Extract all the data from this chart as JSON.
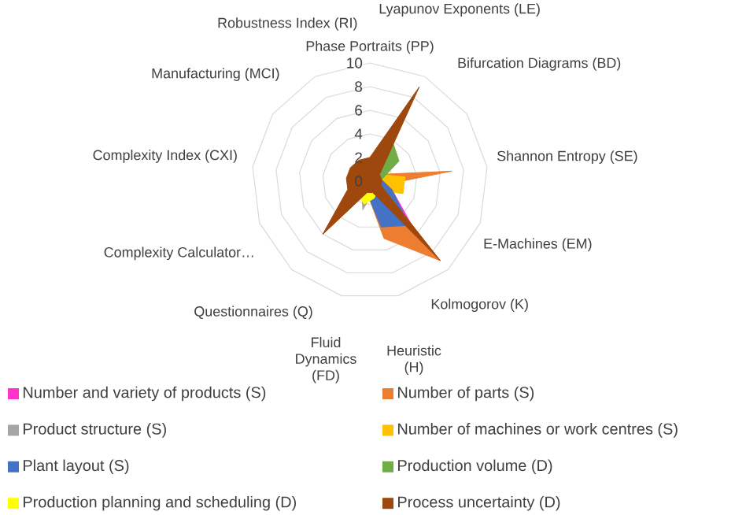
{
  "chart_data": {
    "type": "radar",
    "categories": [
      "Phase Portraits (PP)",
      "Lyapunov Exponents (LE)",
      "Bifurcation Diagrams (BD)",
      "Shannon Entropy (SE)",
      "E-Machines (EM)",
      "Kolmogorov (K)",
      "Heuristic (H)",
      "Fluid Dynamics (FD)",
      "Questionnaires (Q)",
      "Complexity Calculator…",
      "Complexity Index (CXI)",
      "Manufacturing (MCI)",
      "Robustness Index (RI)"
    ],
    "series": [
      {
        "name": "Number and variety of products (S)",
        "color": "#ff33cc",
        "values": [
          null,
          null,
          null,
          null,
          2,
          6,
          4,
          null,
          null,
          null,
          null,
          null,
          null
        ]
      },
      {
        "name": "Number of parts (S)",
        "color": "#ed7d31",
        "values": [
          null,
          null,
          1,
          7,
          1,
          9,
          5,
          1,
          6,
          2,
          null,
          null,
          null
        ]
      },
      {
        "name": "Product structure (S)",
        "color": "#a5a5a5",
        "values": [
          null,
          null,
          null,
          null,
          null,
          null,
          1,
          2.5,
          1,
          null,
          null,
          null,
          null
        ]
      },
      {
        "name": "Number of machines or work centres (S)",
        "color": "#ffc000",
        "values": [
          null,
          null,
          1,
          3,
          3,
          1,
          null,
          null,
          null,
          null,
          null,
          null,
          null
        ]
      },
      {
        "name": "Plant layout (S)",
        "color": "#4472c4",
        "values": [
          null,
          null,
          null,
          1,
          2,
          5,
          4,
          1,
          null,
          null,
          null,
          null,
          null
        ]
      },
      {
        "name": "Production volume (D)",
        "color": "#70ad47",
        "values": [
          1,
          4,
          3,
          1,
          null,
          null,
          null,
          null,
          null,
          null,
          null,
          null,
          null
        ]
      },
      {
        "name": "Production planning and scheduling (D)",
        "color": "#ffff00",
        "values": [
          null,
          null,
          null,
          null,
          null,
          1,
          1.5,
          2,
          1.5,
          null,
          null,
          null,
          null
        ]
      },
      {
        "name": "Process uncertainty (D)",
        "color": "#9e480e",
        "values": [
          2,
          9,
          1,
          1,
          1,
          9,
          1,
          1,
          6,
          2,
          2,
          2,
          2
        ]
      }
    ],
    "ylim": [
      0,
      10
    ],
    "yticks": [
      0,
      2,
      4,
      6,
      8,
      10
    ],
    "grid": true,
    "legend": "bottom"
  }
}
